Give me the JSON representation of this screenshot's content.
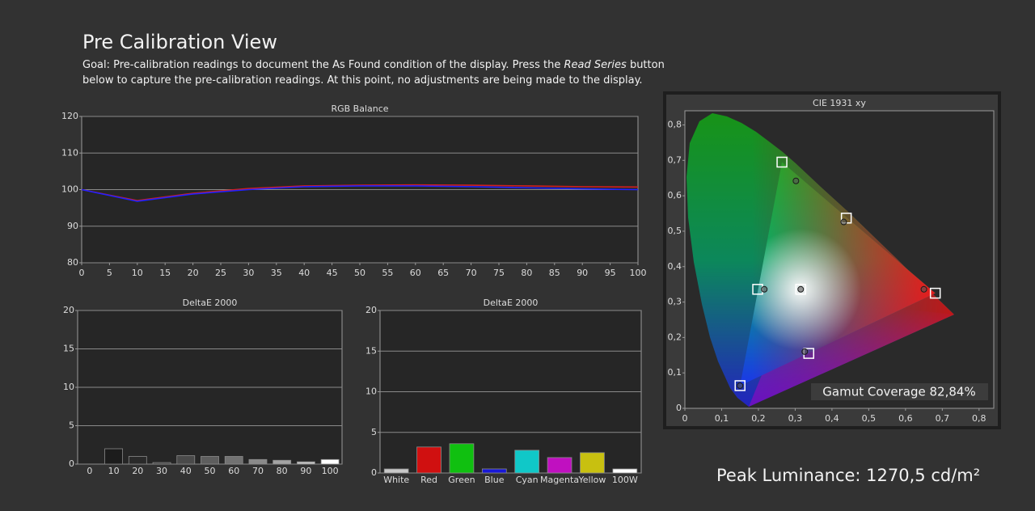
{
  "header": {
    "title": "Pre Calibration View",
    "description": {
      "before": "Goal: Pre-calibration readings to document the As Found condition of the display. Press the ",
      "emphasis": "Read Series",
      "after": " button below to capture the pre-calibration readings. At this point, no adjustments are being made to the display."
    }
  },
  "peak_luminance": "Peak Luminance: 1270,5 cd/m²",
  "chart_data": [
    {
      "type": "line",
      "title": "RGB Balance",
      "x": [
        0,
        10,
        20,
        30,
        40,
        50,
        60,
        70,
        80,
        90,
        100
      ],
      "series": [
        {
          "color": "#d02020",
          "values": [
            100,
            97,
            99,
            100.3,
            101,
            101.2,
            101.3,
            101.2,
            101,
            100.8,
            100.7
          ]
        },
        {
          "color": "#2020ff",
          "values": [
            100,
            96.8,
            98.8,
            100,
            100.8,
            101,
            101,
            100.8,
            100.5,
            100.2,
            100
          ]
        }
      ],
      "xlim": [
        0,
        100
      ],
      "xticks": [
        0,
        5,
        10,
        15,
        20,
        25,
        30,
        35,
        40,
        45,
        50,
        55,
        60,
        65,
        70,
        75,
        80,
        85,
        90,
        95,
        100
      ],
      "ylim": [
        80,
        120
      ],
      "yticks": [
        80,
        90,
        100,
        110,
        120
      ],
      "grid": true
    },
    {
      "type": "bar",
      "title": "DeltaE 2000",
      "categories": [
        "0",
        "10",
        "20",
        "30",
        "40",
        "50",
        "60",
        "70",
        "80",
        "90",
        "100"
      ],
      "values": [
        0,
        2.0,
        1.0,
        0.2,
        1.1,
        1.0,
        1.0,
        0.6,
        0.5,
        0.3,
        0.6
      ],
      "colors": [
        "#101010",
        "#1c1c1c",
        "#2a2a2a",
        "#3a3a3a",
        "#4a4a4a",
        "#5e5e5e",
        "#727272",
        "#8a8a8a",
        "#a4a4a4",
        "#c4c4c4",
        "#ffffff"
      ],
      "ylim": [
        0,
        20
      ],
      "yticks": [
        0,
        5,
        10,
        15,
        20
      ],
      "grid": true
    },
    {
      "type": "bar",
      "title": "DeltaE 2000",
      "categories": [
        "White",
        "Red",
        "Green",
        "Blue",
        "Cyan",
        "Magenta",
        "Yellow",
        "100W"
      ],
      "values": [
        0.5,
        3.2,
        3.6,
        0.5,
        2.8,
        1.9,
        2.5,
        0.5
      ],
      "colors": [
        "#c8c8c8",
        "#d01010",
        "#10c010",
        "#1818d8",
        "#10c8c8",
        "#c010c0",
        "#c8c010",
        "#ffffff"
      ],
      "ylim": [
        0,
        20
      ],
      "yticks": [
        0,
        5,
        10,
        15,
        20
      ],
      "grid": true
    },
    {
      "type": "scatter",
      "title": "CIE 1931 xy",
      "series": [
        {
          "marker": "square",
          "color": "#ffffff",
          "x": [
            0.681,
            0.264,
            0.15,
            0.315,
            0.198,
            0.337,
            0.439
          ],
          "y": [
            0.325,
            0.695,
            0.064,
            0.336,
            0.336,
            0.155,
            0.537
          ]
        },
        {
          "marker": "circle",
          "color": "#555555",
          "x": [
            0.65,
            0.302,
            0.15,
            0.315,
            0.216,
            0.326,
            0.432
          ],
          "y": [
            0.336,
            0.642,
            0.064,
            0.336,
            0.336,
            0.16,
            0.526
          ]
        }
      ],
      "xlim": [
        0,
        0.84
      ],
      "ylim": [
        0,
        0.84
      ],
      "xticks": [
        0,
        {
          "value": 0.1,
          "label": "0,1"
        },
        {
          "value": 0.2,
          "label": "0,2"
        },
        {
          "value": 0.3,
          "label": "0,3"
        },
        {
          "value": 0.4,
          "label": "0,4"
        },
        {
          "value": 0.5,
          "label": "0,5"
        },
        {
          "value": 0.6,
          "label": "0,6"
        },
        {
          "value": 0.7,
          "label": "0,7"
        },
        {
          "value": 0.8,
          "label": "0,8"
        }
      ],
      "yticks": [
        0,
        {
          "value": 0.1,
          "label": "0,1"
        },
        {
          "value": 0.2,
          "label": "0,2"
        },
        {
          "value": 0.3,
          "label": "0,3"
        },
        {
          "value": 0.4,
          "label": "0,4"
        },
        {
          "value": 0.5,
          "label": "0,5"
        },
        {
          "value": 0.6,
          "label": "0,6"
        },
        {
          "value": 0.7,
          "label": "0,7"
        },
        {
          "value": 0.8,
          "label": "0,8"
        }
      ],
      "grid": false,
      "annotation": "Gamut Coverage 82,84%"
    }
  ]
}
